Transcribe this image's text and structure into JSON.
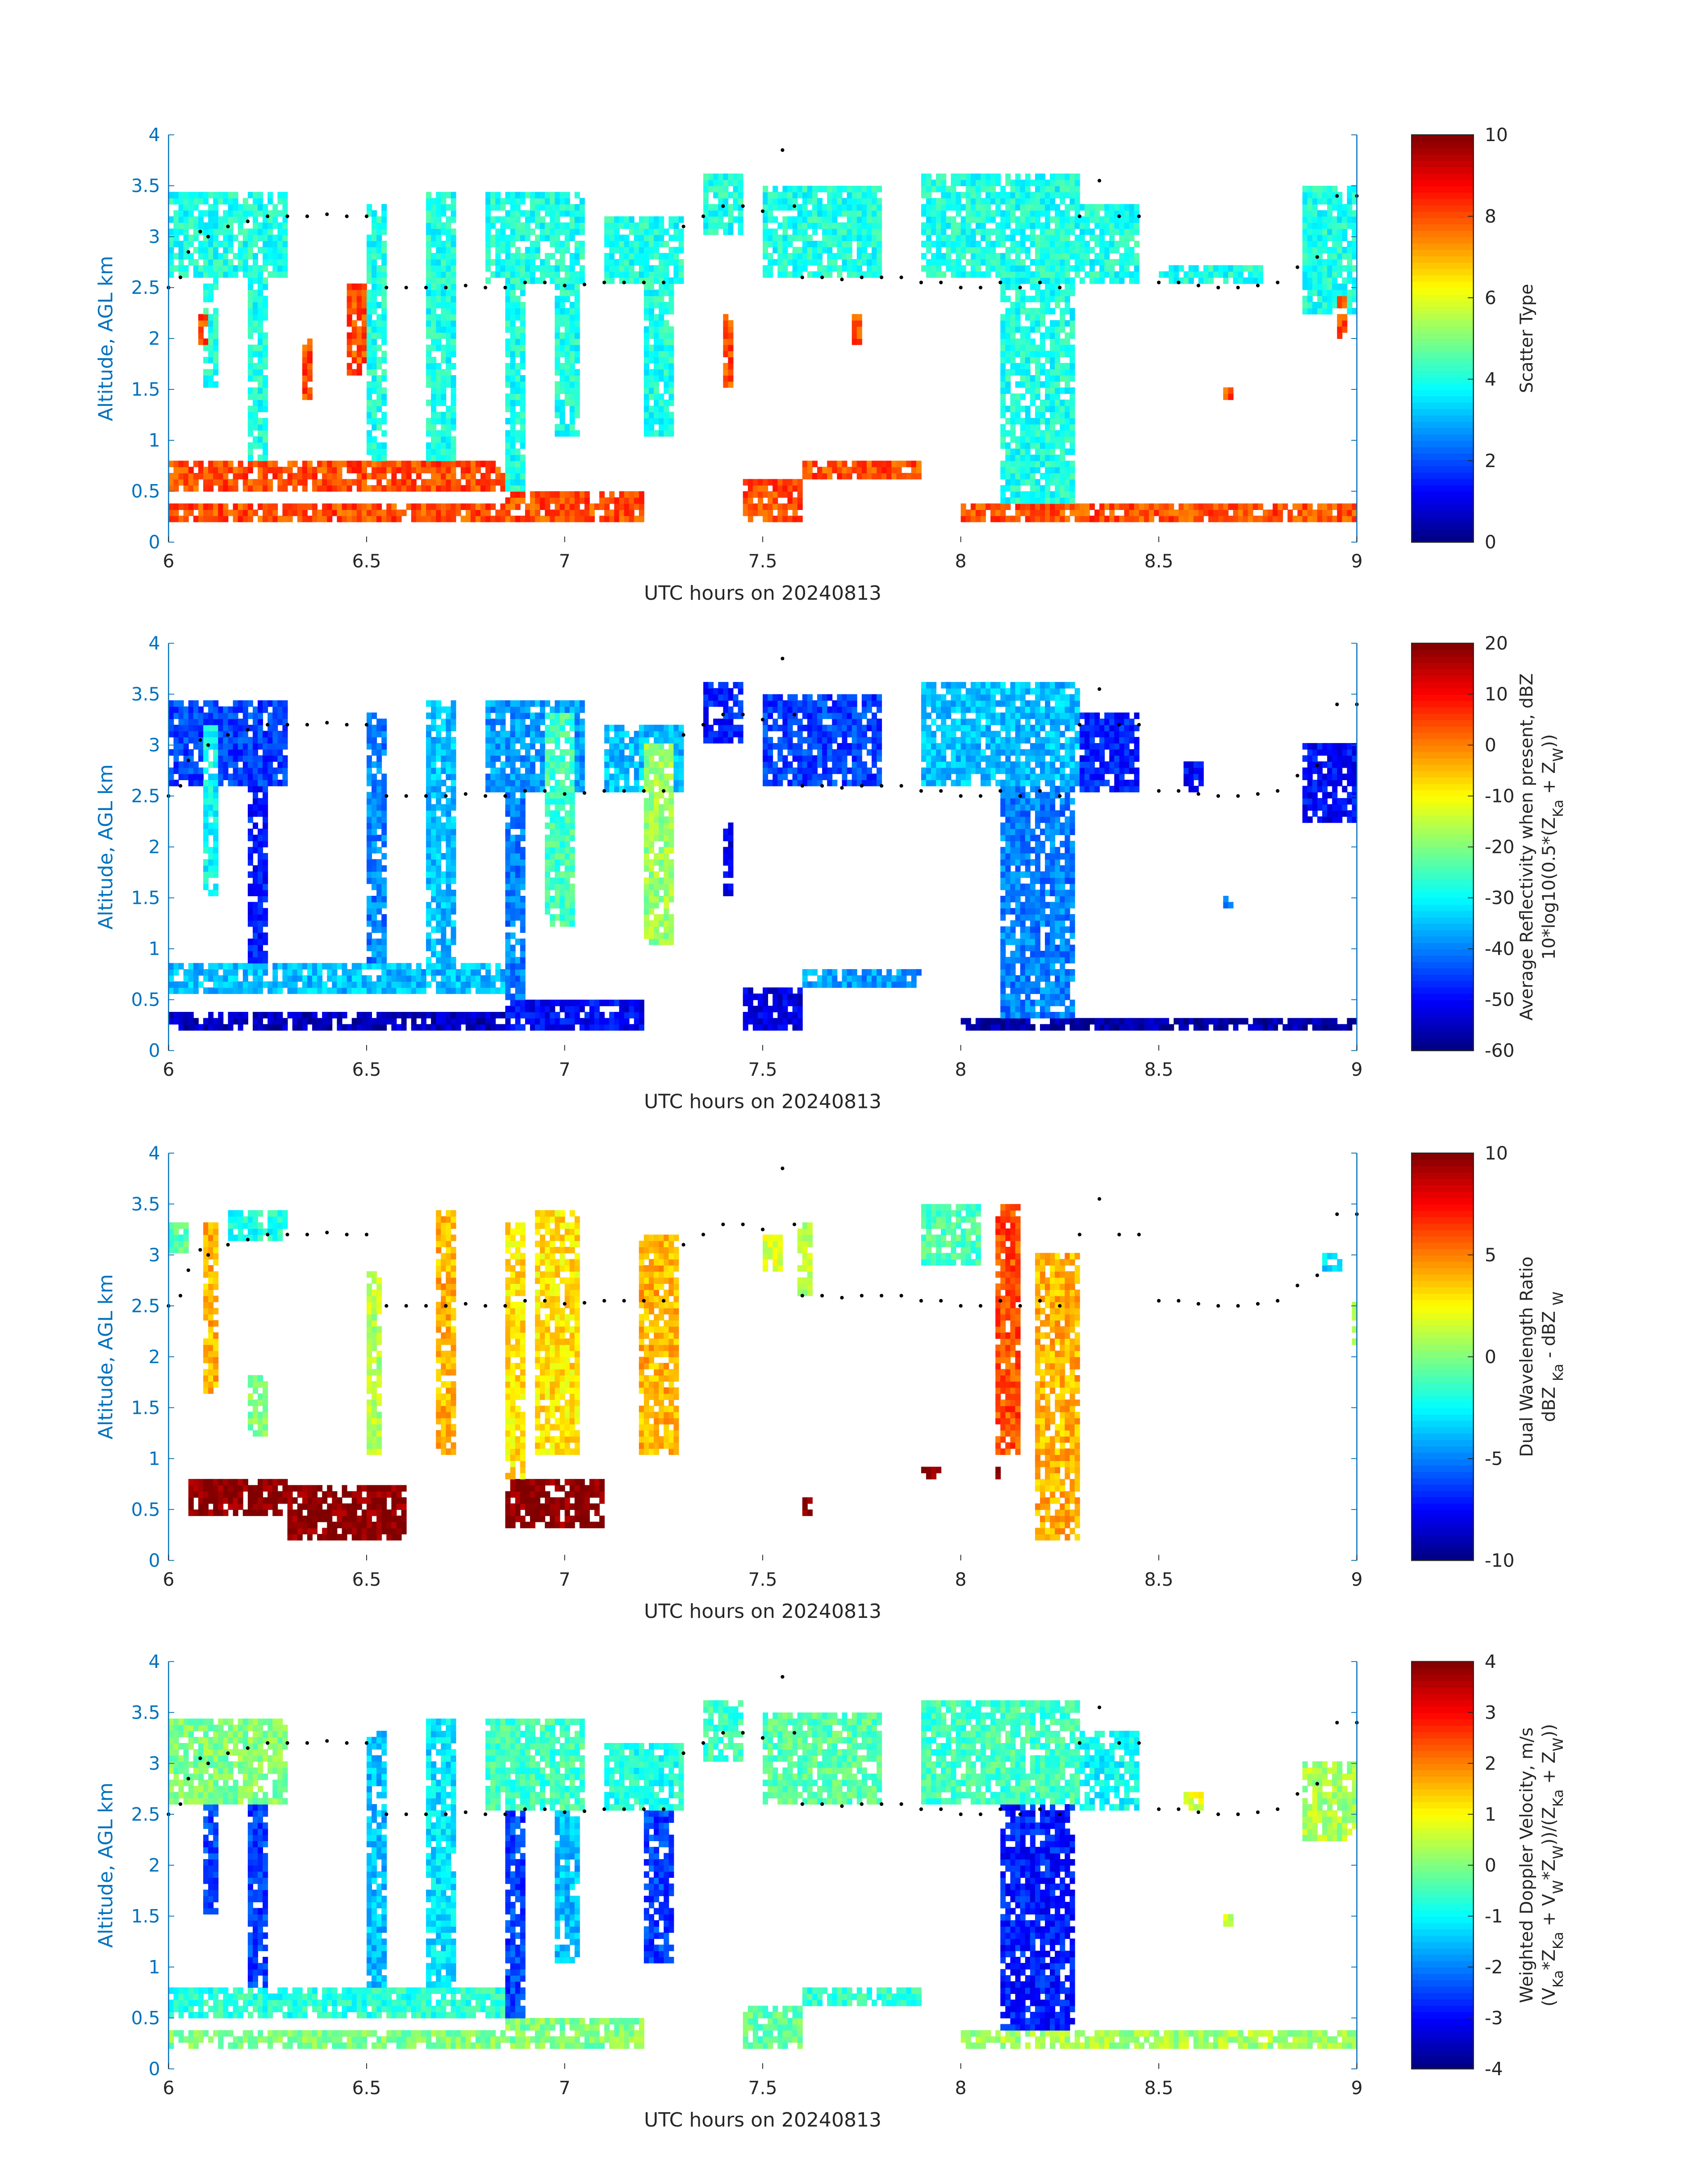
{
  "chart_data": [
    {
      "type": "heatmap",
      "title": "",
      "xlabel": "UTC hours on 20240813",
      "ylabel": "Altitude, AGL km",
      "xlim": [
        6,
        9
      ],
      "ylim": [
        0,
        4
      ],
      "xticks": [
        "6",
        "6.5",
        "7",
        "7.5",
        "8",
        "8.5",
        "9"
      ],
      "yticks": [
        "0",
        "0.5",
        "1",
        "1.5",
        "2",
        "2.5",
        "3",
        "3.5",
        "4"
      ],
      "colorbar": {
        "range": [
          0,
          10
        ],
        "ticks": [
          "0",
          "2",
          "4",
          "6",
          "8",
          "10"
        ],
        "label_lines": [
          [
            {
              "t": "Scatter Type"
            }
          ]
        ]
      },
      "features": [
        [
          6.0,
          6.3,
          2.6,
          3.4,
          4
        ],
        [
          6.08,
          6.12,
          1.5,
          2.6,
          4
        ],
        [
          6.2,
          6.25,
          0.6,
          2.6,
          4
        ],
        [
          6.5,
          6.55,
          0.8,
          3.3,
          4
        ],
        [
          6.65,
          6.72,
          0.6,
          3.4,
          4
        ],
        [
          6.8,
          7.05,
          2.5,
          3.4,
          4
        ],
        [
          6.85,
          6.9,
          0.2,
          2.5,
          4
        ],
        [
          6.97,
          7.03,
          1.0,
          2.5,
          4
        ],
        [
          7.1,
          7.3,
          2.5,
          3.2,
          4
        ],
        [
          7.2,
          7.27,
          1.0,
          2.5,
          4
        ],
        [
          7.35,
          7.45,
          3.0,
          3.6,
          4
        ],
        [
          7.5,
          7.8,
          2.6,
          3.5,
          4
        ],
        [
          7.9,
          8.3,
          2.6,
          3.6,
          4
        ],
        [
          8.1,
          8.28,
          0.2,
          2.6,
          4
        ],
        [
          8.3,
          8.45,
          2.5,
          3.3,
          4
        ],
        [
          8.5,
          8.75,
          2.5,
          2.7,
          4
        ],
        [
          8.85,
          9.0,
          2.2,
          3.5,
          4
        ],
        [
          6.0,
          6.85,
          0.5,
          0.8,
          8
        ],
        [
          6.0,
          7.0,
          0.2,
          0.35,
          8
        ],
        [
          6.85,
          7.2,
          0.2,
          0.5,
          8
        ],
        [
          7.45,
          7.6,
          0.2,
          0.6,
          8
        ],
        [
          7.6,
          7.9,
          0.6,
          0.8,
          8
        ],
        [
          8.0,
          9.0,
          0.2,
          0.35,
          8
        ],
        [
          6.33,
          6.36,
          1.35,
          2.0,
          8
        ],
        [
          6.07,
          6.1,
          1.9,
          2.2,
          8
        ],
        [
          6.45,
          6.49,
          1.6,
          2.5,
          8
        ],
        [
          7.39,
          7.42,
          1.5,
          2.2,
          8
        ],
        [
          7.72,
          7.74,
          1.9,
          2.2,
          8
        ],
        [
          8.94,
          8.97,
          2.0,
          2.4,
          8
        ],
        [
          8.65,
          8.68,
          1.4,
          1.5,
          8
        ]
      ]
    },
    {
      "type": "heatmap",
      "xlabel": "UTC hours on 20240813",
      "ylabel": "Altitude, AGL km",
      "xlim": [
        6,
        9
      ],
      "ylim": [
        0,
        4
      ],
      "xticks": [
        "6",
        "6.5",
        "7",
        "7.5",
        "8",
        "8.5",
        "9"
      ],
      "yticks": [
        "0",
        "0.5",
        "1",
        "1.5",
        "2",
        "2.5",
        "3",
        "3.5",
        "4"
      ],
      "colorbar": {
        "range": [
          -60,
          20
        ],
        "ticks": [
          "-60",
          "-50",
          "-40",
          "-30",
          "-20",
          "-10",
          "0",
          "10",
          "20"
        ],
        "label_lines": [
          [
            {
              "t": "Average Reflectivity when present, dBZ"
            }
          ],
          [
            {
              "t": "10*log10(0.5*(Z"
            },
            {
              "t": "Ka",
              "sub": true
            },
            {
              "t": " + Z"
            },
            {
              "t": "W",
              "sub": true
            },
            {
              "t": "))"
            }
          ]
        ]
      },
      "features": [
        [
          6.0,
          6.3,
          2.6,
          3.4,
          -45
        ],
        [
          6.08,
          6.12,
          1.5,
          3.2,
          -30
        ],
        [
          6.2,
          6.25,
          0.6,
          2.6,
          -48
        ],
        [
          6.5,
          6.55,
          0.8,
          3.3,
          -40
        ],
        [
          6.65,
          6.72,
          0.6,
          3.4,
          -35
        ],
        [
          6.8,
          7.05,
          2.5,
          3.4,
          -38
        ],
        [
          6.95,
          7.02,
          1.2,
          3.3,
          -25
        ],
        [
          6.85,
          6.9,
          0.2,
          2.5,
          -40
        ],
        [
          7.1,
          7.3,
          2.5,
          3.2,
          -35
        ],
        [
          7.2,
          7.27,
          1.0,
          3.0,
          -18
        ],
        [
          7.35,
          7.45,
          3.0,
          3.6,
          -48
        ],
        [
          7.5,
          7.8,
          2.6,
          3.5,
          -45
        ],
        [
          7.9,
          8.3,
          2.6,
          3.6,
          -35
        ],
        [
          8.1,
          8.28,
          0.2,
          2.6,
          -40
        ],
        [
          8.3,
          8.45,
          2.5,
          3.3,
          -48
        ],
        [
          8.55,
          8.6,
          2.5,
          2.8,
          -50
        ],
        [
          8.85,
          9.0,
          2.2,
          3.0,
          -50
        ],
        [
          6.0,
          6.85,
          0.55,
          0.85,
          -35
        ],
        [
          6.0,
          7.0,
          0.2,
          0.35,
          -55
        ],
        [
          6.85,
          7.2,
          0.2,
          0.5,
          -50
        ],
        [
          7.45,
          7.6,
          0.2,
          0.6,
          -52
        ],
        [
          7.6,
          7.9,
          0.6,
          0.8,
          -38
        ],
        [
          8.0,
          9.0,
          0.2,
          0.32,
          -57
        ],
        [
          7.39,
          7.42,
          1.5,
          2.2,
          -52
        ],
        [
          8.65,
          8.68,
          1.4,
          1.5,
          -40
        ]
      ]
    },
    {
      "type": "heatmap",
      "xlabel": "UTC hours on 20240813",
      "ylabel": "Altitude, AGL km",
      "xlim": [
        6,
        9
      ],
      "ylim": [
        0,
        4
      ],
      "xticks": [
        "6",
        "6.5",
        "7",
        "7.5",
        "8",
        "8.5",
        "9"
      ],
      "yticks": [
        "0",
        "0.5",
        "1",
        "1.5",
        "2",
        "2.5",
        "3",
        "3.5",
        "4"
      ],
      "colorbar": {
        "range": [
          -10,
          10
        ],
        "ticks": [
          "-10",
          "-5",
          "0",
          "5",
          "10"
        ],
        "label_lines": [
          [
            {
              "t": "Dual Wavelength Ratio"
            }
          ],
          [
            {
              "t": "dBZ "
            },
            {
              "t": "Ka",
              "sub": true
            },
            {
              "t": " - dBZ "
            },
            {
              "t": "W",
              "sub": true
            }
          ]
        ]
      },
      "features": [
        [
          6.0,
          6.05,
          3.0,
          3.3,
          -1
        ],
        [
          6.08,
          6.12,
          1.6,
          3.3,
          4
        ],
        [
          6.15,
          6.3,
          3.1,
          3.4,
          -2
        ],
        [
          6.2,
          6.24,
          1.2,
          1.8,
          0
        ],
        [
          6.5,
          6.53,
          1.0,
          2.8,
          1
        ],
        [
          6.67,
          6.72,
          1.0,
          3.4,
          4
        ],
        [
          6.85,
          6.9,
          0.8,
          3.3,
          3
        ],
        [
          6.92,
          7.03,
          1.0,
          3.4,
          3
        ],
        [
          7.18,
          7.28,
          1.0,
          3.2,
          4
        ],
        [
          7.5,
          7.55,
          2.8,
          3.2,
          2
        ],
        [
          7.58,
          7.62,
          2.6,
          3.3,
          1
        ],
        [
          7.9,
          8.05,
          2.9,
          3.5,
          -1
        ],
        [
          8.08,
          8.15,
          1.0,
          3.5,
          6
        ],
        [
          8.18,
          8.3,
          0.2,
          3.0,
          4
        ],
        [
          8.9,
          8.95,
          2.8,
          3.0,
          -3
        ],
        [
          8.98,
          9.0,
          2.1,
          2.5,
          0
        ],
        [
          6.05,
          6.3,
          0.4,
          0.8,
          10
        ],
        [
          6.3,
          6.6,
          0.2,
          0.7,
          10
        ],
        [
          6.85,
          7.1,
          0.3,
          0.8,
          10
        ],
        [
          7.9,
          7.95,
          0.8,
          0.9,
          10
        ],
        [
          8.08,
          8.1,
          0.8,
          0.9,
          10
        ],
        [
          7.6,
          7.62,
          0.4,
          0.6,
          10
        ]
      ]
    },
    {
      "type": "heatmap",
      "xlabel": "UTC hours on 20240813",
      "ylabel": "Altitude, AGL km",
      "xlim": [
        6,
        9
      ],
      "ylim": [
        0,
        4
      ],
      "xticks": [
        "6",
        "6.5",
        "7",
        "7.5",
        "8",
        "8.5",
        "9"
      ],
      "yticks": [
        "0",
        "0.5",
        "1",
        "1.5",
        "2",
        "2.5",
        "3",
        "3.5",
        "4"
      ],
      "colorbar": {
        "range": [
          -4,
          4
        ],
        "ticks": [
          "-4",
          "-3",
          "-2",
          "-1",
          "0",
          "1",
          "2",
          "3",
          "4"
        ],
        "label_lines": [
          [
            {
              "t": "Weighted Doppler Velocity, m/s"
            }
          ],
          [
            {
              "t": "(V"
            },
            {
              "t": "Ka",
              "sub": true
            },
            {
              "t": "*Z"
            },
            {
              "t": "Ka",
              "sub": true
            },
            {
              "t": " + V"
            },
            {
              "t": "W",
              "sub": true
            },
            {
              "t": "*Z"
            },
            {
              "t": "W",
              "sub": true
            },
            {
              "t": "))/(Z"
            },
            {
              "t": "Ka",
              "sub": true
            },
            {
              "t": " + Z"
            },
            {
              "t": "W",
              "sub": true
            },
            {
              "t": "))"
            }
          ]
        ]
      },
      "features": [
        [
          6.0,
          6.3,
          2.6,
          3.4,
          0
        ],
        [
          6.08,
          6.12,
          1.5,
          2.6,
          -2.5
        ],
        [
          6.2,
          6.25,
          0.6,
          2.6,
          -2.5
        ],
        [
          6.5,
          6.55,
          0.8,
          3.3,
          -1.5
        ],
        [
          6.65,
          6.72,
          0.6,
          3.4,
          -1.2
        ],
        [
          6.8,
          7.05,
          2.5,
          3.4,
          -0.5
        ],
        [
          6.85,
          6.9,
          0.2,
          2.5,
          -2.5
        ],
        [
          6.97,
          7.03,
          1.0,
          2.5,
          -1.5
        ],
        [
          7.1,
          7.3,
          2.5,
          3.2,
          -0.8
        ],
        [
          7.2,
          7.27,
          1.0,
          2.5,
          -2.5
        ],
        [
          7.35,
          7.45,
          3.0,
          3.6,
          -0.5
        ],
        [
          7.5,
          7.8,
          2.6,
          3.5,
          -0.3
        ],
        [
          7.9,
          8.3,
          2.6,
          3.6,
          -0.5
        ],
        [
          8.1,
          8.28,
          0.3,
          2.6,
          -2.8
        ],
        [
          8.3,
          8.45,
          2.5,
          3.3,
          -1
        ],
        [
          8.55,
          8.6,
          2.5,
          2.7,
          0.7
        ],
        [
          8.85,
          9.0,
          2.2,
          3.0,
          0.3
        ],
        [
          6.0,
          6.85,
          0.5,
          0.8,
          -0.7
        ],
        [
          6.0,
          7.0,
          0.2,
          0.35,
          0
        ],
        [
          6.85,
          7.2,
          0.2,
          0.5,
          0
        ],
        [
          7.45,
          7.6,
          0.2,
          0.6,
          -0.2
        ],
        [
          7.6,
          7.9,
          0.6,
          0.8,
          -0.6
        ],
        [
          8.0,
          9.0,
          0.2,
          0.35,
          0.3
        ],
        [
          8.65,
          8.68,
          1.4,
          1.5,
          0.5
        ]
      ]
    }
  ],
  "overlay_points": {
    "t": [
      6.0,
      6.03,
      6.05,
      6.08,
      6.1,
      6.15,
      6.2,
      6.25,
      6.3,
      6.35,
      6.4,
      6.45,
      6.5,
      6.55,
      6.6,
      6.65,
      6.7,
      6.75,
      6.8,
      6.85,
      6.9,
      6.95,
      7.0,
      7.05,
      7.1,
      7.15,
      7.2,
      7.25,
      7.3,
      7.35,
      7.4,
      7.45,
      7.5,
      7.55,
      7.58,
      7.6,
      7.65,
      7.7,
      7.75,
      7.8,
      7.85,
      7.9,
      7.95,
      8.0,
      8.05,
      8.1,
      8.15,
      8.2,
      8.25,
      8.3,
      8.35,
      8.4,
      8.45,
      8.5,
      8.55,
      8.6,
      8.65,
      8.7,
      8.75,
      8.8,
      8.85,
      8.9,
      8.95,
      9.0
    ],
    "z": [
      2.5,
      2.6,
      2.85,
      3.05,
      3.0,
      3.1,
      3.15,
      3.2,
      3.2,
      3.2,
      3.22,
      3.2,
      3.2,
      2.5,
      2.5,
      2.5,
      2.5,
      2.52,
      2.5,
      2.5,
      2.55,
      2.55,
      2.52,
      2.53,
      2.55,
      2.55,
      2.55,
      2.55,
      3.1,
      3.2,
      3.3,
      3.3,
      3.25,
      3.85,
      3.3,
      2.6,
      2.6,
      2.58,
      2.6,
      2.6,
      2.6,
      2.55,
      2.55,
      2.5,
      2.5,
      2.55,
      2.5,
      2.55,
      2.5,
      3.2,
      3.55,
      3.2,
      3.2,
      2.55,
      2.55,
      2.52,
      2.5,
      2.5,
      2.52,
      2.55,
      2.7,
      2.8,
      3.4,
      3.4
    ]
  }
}
